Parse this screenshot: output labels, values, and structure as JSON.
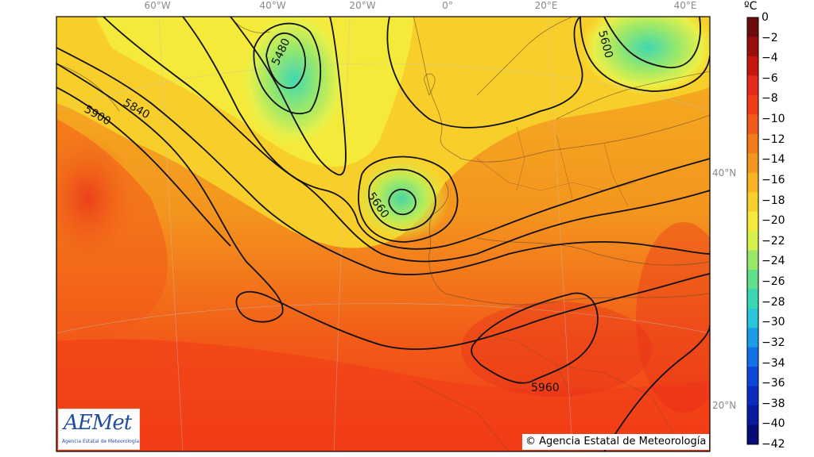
{
  "map": {
    "lon_labels": [
      "60°W",
      "40°W",
      "20°W",
      "0°",
      "20°E",
      "40°E"
    ],
    "lat_labels": [
      "40°N",
      "20°N"
    ],
    "contour_labels": [
      "5480",
      "5600",
      "5660",
      "5840",
      "5900",
      "5960"
    ],
    "copyright": "© Agencia Estatal de Meteorología"
  },
  "legend": {
    "unit": "ºC",
    "ticks": [
      "0",
      "−2",
      "−4",
      "−6",
      "−8",
      "−10",
      "−12",
      "−14",
      "−16",
      "−18",
      "−20",
      "−22",
      "−24",
      "−26",
      "−28",
      "−30",
      "−32",
      "−34",
      "−36",
      "−38",
      "−40",
      "−42"
    ],
    "colors": [
      "#6e0b0b",
      "#9a0e0e",
      "#c8160f",
      "#e8281a",
      "#f23c18",
      "#f25a18",
      "#f27a1c",
      "#f4951e",
      "#f6b322",
      "#f8cf2a",
      "#f5ea3a",
      "#d8f04a",
      "#9ae86a",
      "#5ee08c",
      "#3ad8b2",
      "#28c6d8",
      "#1a9ce8",
      "#1470e6",
      "#0e46d8",
      "#0a2ac0",
      "#081aa0",
      "#060c78"
    ]
  },
  "logo": {
    "name": "AEMet",
    "subtitle": "Agencia Estatal de Meteorología"
  }
}
